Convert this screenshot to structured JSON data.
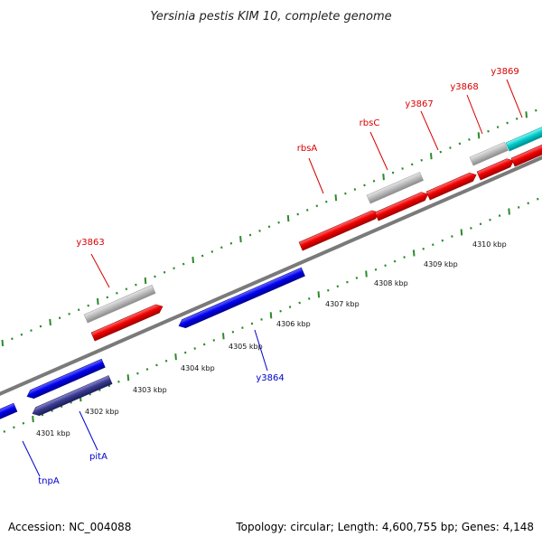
{
  "title": "Yersinia pestis KIM 10, complete genome",
  "footer": {
    "accession": "Accession: NC_004088",
    "summary": "Topology: circular; Length: 4,600,755 bp; Genes: 4,148"
  },
  "colors": {
    "forward_gene": "#ff0000",
    "reverse_gene": "#0000ff",
    "dark_reverse_gene": "#333399",
    "cyan_gene": "#00cccc",
    "pseudo_gene": "#b4b4b4",
    "backbone": "#808080",
    "tick": "#2a8a2a",
    "label_forward": "#d80000",
    "label_reverse": "#0000cc"
  },
  "kbp_labels": [
    "4301 kbp",
    "4302 kbp",
    "4303 kbp",
    "4304 kbp",
    "4305 kbp",
    "4306 kbp",
    "4307 kbp",
    "4308 kbp",
    "4309 kbp",
    "4310 kbp"
  ],
  "gene_labels": {
    "forward": [
      "y3863",
      "rbsA",
      "rbsC",
      "y3867",
      "y3868",
      "y3869"
    ],
    "reverse": [
      "y3864",
      "pitA",
      "tnpA"
    ]
  }
}
